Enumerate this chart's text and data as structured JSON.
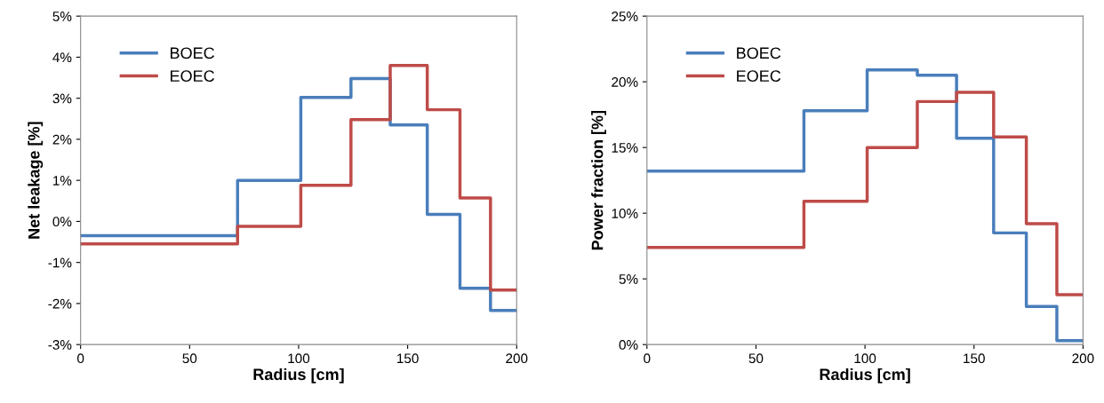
{
  "chart_data": [
    {
      "type": "step",
      "xlabel": "Radius [cm]",
      "ylabel": "Net leakage [%]",
      "x": [
        0,
        72,
        101,
        124,
        142,
        159,
        174,
        188,
        200
      ],
      "series": [
        {
          "name": "BOEC",
          "color": "#4a7ebb",
          "values": [
            -0.35,
            1.0,
            3.02,
            3.48,
            2.35,
            0.17,
            -1.63,
            -2.17,
            -2.17
          ]
        },
        {
          "name": "EOEC",
          "color": "#be4b48",
          "values": [
            -0.55,
            -0.12,
            0.88,
            2.48,
            3.8,
            2.72,
            0.57,
            -1.67,
            -1.67
          ]
        }
      ],
      "xlim": [
        0,
        200
      ],
      "xticks": [
        0,
        50,
        100,
        150,
        200
      ],
      "ylim": [
        -3,
        5
      ],
      "yticks": [
        {
          "value": -3,
          "label": "-3%"
        },
        {
          "value": -2,
          "label": "-2%"
        },
        {
          "value": -1,
          "label": "-1%"
        },
        {
          "value": 0,
          "label": "0%"
        },
        {
          "value": 1,
          "label": "1%"
        },
        {
          "value": 2,
          "label": "2%"
        },
        {
          "value": 3,
          "label": "3%"
        },
        {
          "value": 4,
          "label": "4%"
        },
        {
          "value": 5,
          "label": "5%"
        }
      ],
      "legend": "top left",
      "grid": false
    },
    {
      "type": "step",
      "xlabel": "Radius [cm]",
      "ylabel": "Power fraction [%]",
      "x": [
        0,
        72,
        101,
        124,
        142,
        159,
        174,
        188,
        200
      ],
      "series": [
        {
          "name": "BOEC",
          "color": "#4a7ebb",
          "values": [
            13.2,
            17.8,
            20.9,
            20.5,
            15.7,
            8.5,
            2.9,
            0.3,
            0.3
          ]
        },
        {
          "name": "EOEC",
          "color": "#be4b48",
          "values": [
            7.4,
            10.9,
            15.0,
            18.5,
            19.2,
            15.8,
            9.2,
            3.8,
            3.8
          ]
        }
      ],
      "xlim": [
        0,
        200
      ],
      "xticks": [
        0,
        50,
        100,
        150,
        200
      ],
      "ylim": [
        0,
        25
      ],
      "yticks": [
        {
          "value": 0,
          "label": "0%"
        },
        {
          "value": 5,
          "label": "5%"
        },
        {
          "value": 10,
          "label": "10%"
        },
        {
          "value": 15,
          "label": "15%"
        },
        {
          "value": 20,
          "label": "20%"
        },
        {
          "value": 25,
          "label": "25%"
        }
      ],
      "legend": "top left",
      "grid": false
    }
  ]
}
